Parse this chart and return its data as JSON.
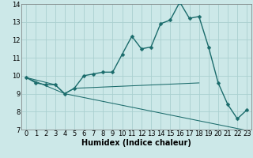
{
  "title": "",
  "xlabel": "Humidex (Indice chaleur)",
  "xlim": [
    -0.5,
    23.5
  ],
  "ylim": [
    7,
    14
  ],
  "bg_color": "#cce8e8",
  "line_color": "#1a6b6b",
  "grid_color": "#aad0d0",
  "line1_x": [
    0,
    1,
    2,
    3,
    4,
    5,
    6,
    7,
    8,
    9,
    10,
    11,
    12,
    13,
    14,
    15,
    16,
    17,
    18,
    19,
    20,
    21,
    22,
    23
  ],
  "line1_y": [
    9.9,
    9.6,
    9.5,
    9.5,
    9.0,
    9.3,
    10.0,
    10.1,
    10.2,
    10.2,
    11.2,
    12.2,
    11.5,
    11.6,
    12.9,
    13.1,
    14.1,
    13.2,
    13.3,
    11.6,
    9.6,
    8.4,
    7.6,
    8.1
  ],
  "line2_x": [
    0,
    3,
    4,
    5,
    18
  ],
  "line2_y": [
    9.9,
    9.5,
    9.0,
    9.3,
    9.6
  ],
  "line3_x": [
    0,
    4,
    23
  ],
  "line3_y": [
    9.9,
    9.0,
    6.95
  ],
  "xticks": [
    0,
    1,
    2,
    3,
    4,
    5,
    6,
    7,
    8,
    9,
    10,
    11,
    12,
    13,
    14,
    15,
    16,
    17,
    18,
    19,
    20,
    21,
    22,
    23
  ],
  "yticks": [
    7,
    8,
    9,
    10,
    11,
    12,
    13,
    14
  ],
  "tick_fontsize": 6.0,
  "xlabel_fontsize": 7.0,
  "marker_size": 2.5,
  "linewidth1": 1.0,
  "linewidth23": 0.75
}
